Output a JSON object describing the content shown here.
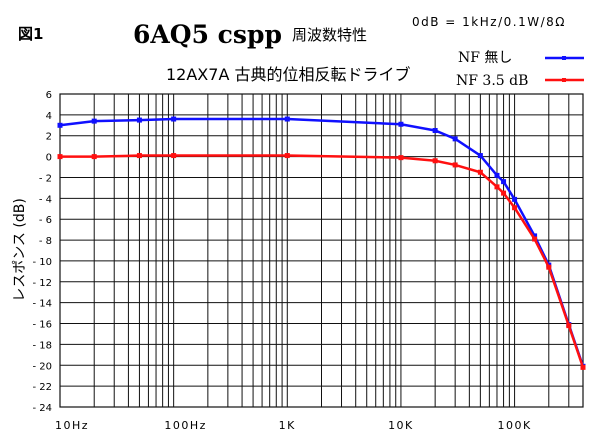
{
  "chart_data": {
    "type": "line",
    "figure_label": "図1",
    "title": "6AQ5 cspp",
    "title_suffix": "周波数特性",
    "subtitle": "12AX7A 古典的位相反転ドライブ",
    "reference_note": "0dB = 1kHz/0.1W/8Ω",
    "xlabel": "",
    "ylabel": "レスポンス (dB)",
    "xscale": "log",
    "xlim": [
      10,
      400000
    ],
    "ylim": [
      -24,
      6
    ],
    "grid": true,
    "legend_position": "top-right",
    "x_tick_labels": [
      {
        "value": 10,
        "label": "10Hz"
      },
      {
        "value": 100,
        "label": "100Hz"
      },
      {
        "value": 1000,
        "label": "1K"
      },
      {
        "value": 10000,
        "label": "10K"
      },
      {
        "value": 100000,
        "label": "100K"
      }
    ],
    "y_ticks": [
      6,
      4,
      2,
      0,
      -2,
      -4,
      -6,
      -8,
      -10,
      -12,
      -14,
      -16,
      -18,
      -20,
      -22,
      -24
    ],
    "y_tick_labels": [
      "6",
      "4",
      "2",
      "0",
      "- 2",
      "- 4",
      "- 6",
      "- 8",
      "- 10",
      "- 12",
      "- 14",
      "- 16",
      "- 18",
      "- 20",
      "- 22",
      "- 24"
    ],
    "x": [
      10,
      20,
      50,
      100,
      1000,
      10000,
      20000,
      30000,
      50000,
      70000,
      80000,
      100000,
      150000,
      200000,
      300000,
      400000
    ],
    "series": [
      {
        "name": "NF 無し",
        "color": "#1010ff",
        "values": [
          3.0,
          3.4,
          3.5,
          3.6,
          3.6,
          3.1,
          2.5,
          1.7,
          0.1,
          -1.8,
          -2.4,
          -4.1,
          -7.6,
          -10.4,
          -16.1,
          -20.1
        ]
      },
      {
        "name": "NF 3.5 dB",
        "color": "#ff1010",
        "values": [
          0.0,
          0.0,
          0.1,
          0.1,
          0.1,
          -0.1,
          -0.4,
          -0.8,
          -1.5,
          -2.9,
          -3.5,
          -4.9,
          -7.9,
          -10.6,
          -16.2,
          -20.2
        ]
      }
    ]
  }
}
